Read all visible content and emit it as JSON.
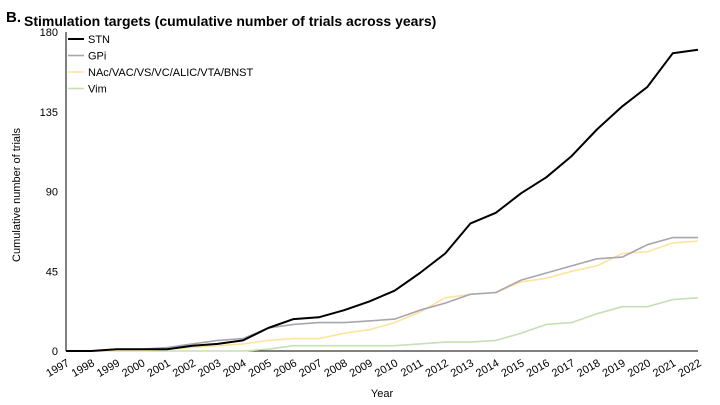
{
  "panel_label": "B.",
  "chart_data": {
    "type": "line",
    "title": "Stimulation targets (cumulative number of trials across years)",
    "xlabel": "Year",
    "ylabel": "Cumulative number of trials",
    "ylim": [
      0,
      180
    ],
    "yticks": [
      0,
      45,
      90,
      135,
      180
    ],
    "grid": false,
    "legend_position": "top-left",
    "categories": [
      "1997",
      "1998",
      "1999",
      "2000",
      "2001",
      "2002",
      "2003",
      "2004",
      "2005",
      "2006",
      "2007",
      "2008",
      "2009",
      "2010",
      "2011",
      "2012",
      "2013",
      "2014",
      "2015",
      "2016",
      "2017",
      "2018",
      "2019",
      "2020",
      "2021",
      "2022"
    ],
    "series": [
      {
        "name": "STN",
        "color": "#000000",
        "values": [
          0,
          0,
          1,
          1,
          1,
          3,
          4,
          6,
          13,
          18,
          19,
          23,
          28,
          34,
          44,
          55,
          72,
          78,
          89,
          98,
          110,
          125,
          138,
          149,
          168,
          170
        ]
      },
      {
        "name": "GPi",
        "color": "#a8a5b0",
        "values": [
          0,
          0,
          1,
          1,
          2,
          4,
          6,
          7,
          13,
          15,
          16,
          16,
          17,
          18,
          23,
          27,
          32,
          33,
          40,
          44,
          48,
          52,
          53,
          60,
          64,
          64
        ]
      },
      {
        "name": "NAc/VAC/VS/VC/ALIC/VTA/BNST",
        "color": "#fde49e",
        "values": [
          0,
          0,
          0,
          0,
          1,
          2,
          3,
          4,
          6,
          7,
          7,
          10,
          12,
          16,
          22,
          30,
          32,
          33,
          39,
          41,
          45,
          48,
          55,
          56,
          61,
          62
        ]
      },
      {
        "name": "Vim",
        "color": "#c6e0b4",
        "values": [
          0,
          0,
          0,
          0,
          0,
          0,
          0,
          0,
          1,
          3,
          3,
          3,
          3,
          3,
          4,
          5,
          5,
          6,
          10,
          15,
          16,
          21,
          25,
          25,
          29,
          30
        ]
      }
    ]
  }
}
